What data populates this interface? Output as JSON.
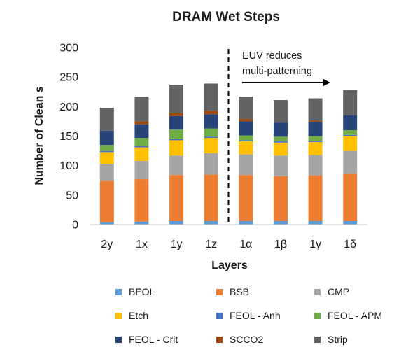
{
  "chart_data": {
    "type": "bar",
    "stacked": true,
    "title": "DRAM Wet Steps",
    "xlabel": "Layers",
    "ylabel": "Number of Clean s",
    "ylim": [
      0,
      300
    ],
    "yticks": [
      0,
      50,
      100,
      150,
      200,
      250,
      300
    ],
    "categories": [
      "2y",
      "1x",
      "1y",
      "1z",
      "1α",
      "1β",
      "1γ",
      "1δ"
    ],
    "series": [
      {
        "name": "BEOL",
        "color": "#5b9bd5",
        "values": [
          4,
          5,
          6,
          6,
          6,
          6,
          6,
          6
        ]
      },
      {
        "name": "BSB",
        "color": "#ed7d31",
        "values": [
          70,
          72,
          78,
          79,
          78,
          76,
          77,
          81
        ]
      },
      {
        "name": "CMP",
        "color": "#a5a5a5",
        "values": [
          29,
          31,
          33,
          36,
          35,
          35,
          35,
          38
        ]
      },
      {
        "name": "Etch",
        "color": "#ffc000",
        "values": [
          20,
          23,
          26,
          26,
          22,
          22,
          22,
          25
        ]
      },
      {
        "name": "FEOL - Anh",
        "color": "#4472c4",
        "values": [
          2,
          2,
          2,
          2,
          2,
          2,
          2,
          2
        ]
      },
      {
        "name": "FEOL - APM",
        "color": "#70ad47",
        "values": [
          10,
          14,
          16,
          14,
          8,
          8,
          8,
          8
        ]
      },
      {
        "name": "FEOL - Crit",
        "color": "#264478",
        "values": [
          24,
          23,
          23,
          24,
          24,
          24,
          24,
          25
        ]
      },
      {
        "name": "SCCO2",
        "color": "#9e480e",
        "values": [
          0,
          5,
          5,
          6,
          4,
          0,
          2,
          0
        ]
      },
      {
        "name": "Strip",
        "color": "#636363",
        "values": [
          39,
          42,
          48,
          46,
          38,
          38,
          38,
          43
        ]
      }
    ],
    "annotation": {
      "line1": "EUV reduces",
      "line2": "multi-patterning",
      "divider_between": [
        "1z",
        "1α"
      ]
    },
    "legend_position": "bottom",
    "grid": false
  }
}
